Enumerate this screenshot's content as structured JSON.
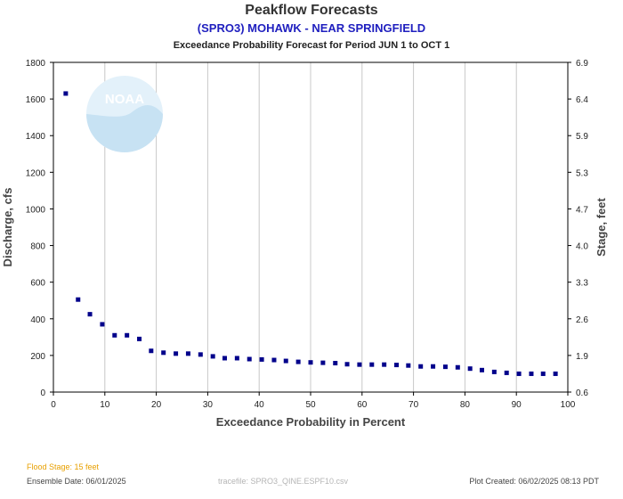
{
  "header": {
    "title": "Peakflow Forecasts",
    "subtitle": "(SPRO3) MOHAWK - NEAR SPRINGFIELD",
    "period": "Exceedance Probability Forecast for Period JUN 1 to OCT 1"
  },
  "footer": {
    "flood_stage": "Flood Stage: 15 feet",
    "ensemble_date": "Ensemble Date: 06/01/2025",
    "tracefile": "tracefile: SPRO3_QINE.ESPF10.csv",
    "plot_created": "Plot Created: 06/02/2025 08:13 PDT"
  },
  "logo": {
    "text": "NOAA"
  },
  "colors": {
    "series": "#00008b",
    "grid": "#c8c8c8",
    "axis": "#000000",
    "flood": "#e8a000",
    "subtitle": "#1f1fbf"
  },
  "chart_data": {
    "type": "scatter",
    "xlabel": "Exceedance Probability in Percent",
    "ylabel": "Discharge, cfs",
    "y2label": "Stage, feet",
    "xlim": [
      0,
      100
    ],
    "ylim": [
      0,
      1800
    ],
    "xticks": [
      0,
      10,
      20,
      30,
      40,
      50,
      60,
      70,
      80,
      90,
      100
    ],
    "yticks": [
      0,
      200,
      400,
      600,
      800,
      1000,
      1200,
      1400,
      1600,
      1800
    ],
    "y2ticks": [
      "0.6",
      "1.9",
      "2.6",
      "3.3",
      "4.0",
      "4.7",
      "5.3",
      "5.9",
      "6.4",
      "6.9"
    ],
    "grid": "vertical",
    "series": [
      {
        "x": [
          2.4,
          4.8,
          7.1,
          9.5,
          11.9,
          14.3,
          16.7,
          19.0,
          21.4,
          23.8,
          26.2,
          28.6,
          31.0,
          33.3,
          35.7,
          38.1,
          40.5,
          42.9,
          45.2,
          47.6,
          50.0,
          52.4,
          54.8,
          57.1,
          59.5,
          61.9,
          64.3,
          66.7,
          69.0,
          71.4,
          73.8,
          76.2,
          78.6,
          81.0,
          83.3,
          85.7,
          88.1,
          90.5,
          92.9,
          95.2,
          97.6
        ],
        "y": [
          1630,
          505,
          425,
          370,
          310,
          310,
          290,
          225,
          215,
          210,
          210,
          205,
          195,
          185,
          185,
          180,
          178,
          175,
          170,
          165,
          162,
          160,
          158,
          152,
          150,
          150,
          150,
          148,
          145,
          140,
          140,
          138,
          135,
          128,
          120,
          110,
          105,
          100,
          100,
          100,
          100
        ]
      }
    ]
  }
}
